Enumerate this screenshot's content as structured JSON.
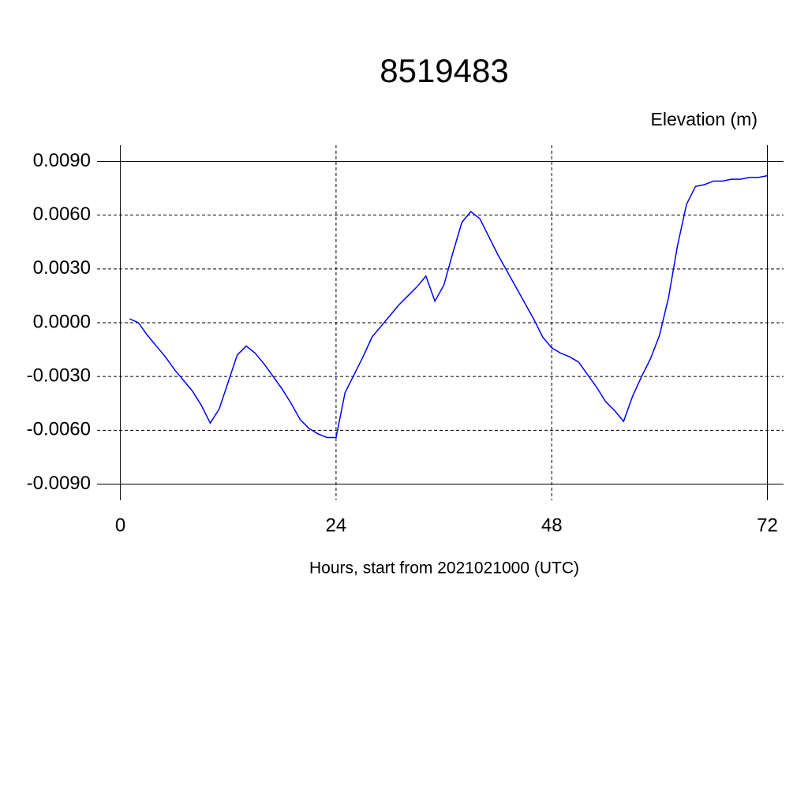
{
  "chart_data": {
    "type": "line",
    "title": "8519483",
    "y_label": "Elevation (m)",
    "x_label": "Hours, start from 2021021000 (UTC)",
    "x": [
      1,
      2,
      3,
      4,
      5,
      6,
      7,
      8,
      9,
      10,
      11,
      12,
      13,
      14,
      15,
      16,
      17,
      18,
      19,
      20,
      21,
      22,
      23,
      24,
      25,
      26,
      27,
      28,
      29,
      30,
      31,
      32,
      33,
      34,
      35,
      36,
      37,
      38,
      39,
      40,
      41,
      42,
      43,
      44,
      45,
      46,
      47,
      48,
      49,
      50,
      51,
      52,
      53,
      54,
      55,
      56,
      57,
      58,
      59,
      60,
      61,
      62,
      63,
      64,
      65,
      66,
      67,
      68,
      69,
      70,
      71,
      72
    ],
    "series": [
      {
        "name": "Elevation",
        "color": "#0000ff",
        "values": [
          0.00022,
          0.0,
          -0.0007,
          -0.0013,
          -0.0019,
          -0.0026,
          -0.0032,
          -0.0038,
          -0.0046,
          -0.0056,
          -0.0048,
          -0.0033,
          -0.0018,
          -0.0013,
          -0.0017,
          -0.0023,
          -0.003,
          -0.0037,
          -0.0045,
          -0.0054,
          -0.0059,
          -0.0062,
          -0.0064,
          -0.0064,
          -0.0039,
          -0.0029,
          -0.0019,
          -0.0008,
          -0.0002,
          0.0004,
          0.001,
          0.0015,
          0.002,
          0.0026,
          0.0012,
          0.0021,
          0.0039,
          0.0056,
          0.0062,
          0.0058,
          0.0048,
          0.0038,
          0.0029,
          0.002,
          0.0011,
          0.0002,
          -0.0008,
          -0.0014,
          -0.0017,
          -0.0019,
          -0.0022,
          -0.0029,
          -0.0036,
          -0.0044,
          -0.0049,
          -0.0055,
          -0.0041,
          -0.003,
          -0.002,
          -0.0007,
          0.0014,
          0.0043,
          0.0066,
          0.0076,
          0.0077,
          0.0079,
          0.0079,
          0.008,
          0.008,
          0.0081,
          0.0081,
          0.0082
        ]
      }
    ],
    "xlim": [
      -2.6,
      73.8
    ],
    "ylim": [
      -0.0099,
      0.0099
    ],
    "xticks": [
      0,
      24,
      48,
      72
    ],
    "yticks": [
      {
        "value": -0.009,
        "label": "-0.0090"
      },
      {
        "value": -0.006,
        "label": "-0.0060"
      },
      {
        "value": -0.003,
        "label": "-0.0030"
      },
      {
        "value": 0,
        "label": "0.0000"
      },
      {
        "value": 0.003,
        "label": "0.0030"
      },
      {
        "value": 0.006,
        "label": "0.0060"
      },
      {
        "value": 0.009,
        "label": "0.0090"
      }
    ],
    "grid": true
  }
}
